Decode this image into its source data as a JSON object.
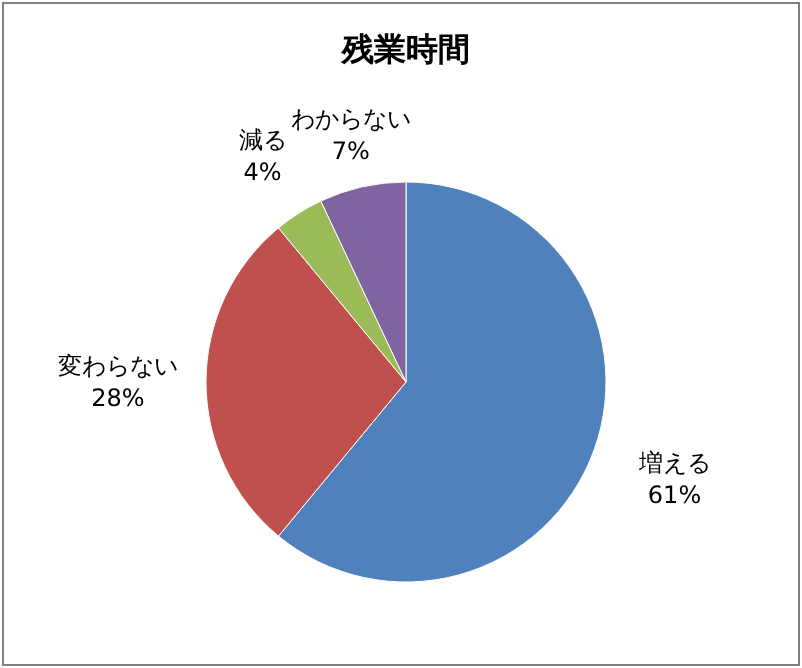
{
  "chart_data": {
    "type": "pie",
    "title": "残業時間",
    "categories": [
      "増える",
      "変わらない",
      "減る",
      "わからない"
    ],
    "values": [
      61,
      28,
      4,
      7
    ],
    "value_labels": [
      "61%",
      "28%",
      "4%",
      "7%"
    ],
    "colors": [
      "#4f81bd",
      "#c0504d",
      "#9bbb59",
      "#8064a2"
    ]
  }
}
